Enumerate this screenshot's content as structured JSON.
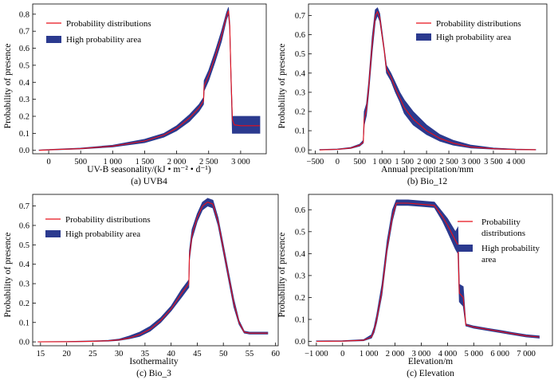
{
  "colors": {
    "line": "#e8101a",
    "band": "#2b3a8f",
    "frame": "#000000"
  },
  "legend": {
    "line_label": "Probability distributions",
    "band_label": "High probability area"
  },
  "panels": [
    {
      "caption": "(a)  UVB4",
      "xlabel": "UV-B seasonality/(kJ • m⁻² • d⁻¹)",
      "ylabel": "Probability of presence",
      "xlim": [
        -250,
        3400
      ],
      "ylim": [
        -0.02,
        0.86
      ],
      "xticks": [
        0,
        500,
        1000,
        1500,
        2000,
        2500,
        3000
      ],
      "xtick_labels": [
        "0",
        "500",
        "1 000",
        "1 500",
        "2 000",
        "2 500",
        "3 000"
      ],
      "yticks": [
        0,
        0.1,
        0.2,
        0.3,
        0.4,
        0.5,
        0.6,
        0.7,
        0.8
      ],
      "ytick_labels": [
        "0.0",
        "0.1",
        "0.2",
        "0.3",
        "0.4",
        "0.5",
        "0.6",
        "0.7",
        "0.8"
      ]
    },
    {
      "caption": "(b)  Bio_12",
      "xlabel": "Annual precipitation/mm",
      "ylabel": "Probability of presence",
      "xlim": [
        -650,
        4700
      ],
      "ylim": [
        -0.02,
        0.76
      ],
      "xticks": [
        -500,
        0,
        500,
        1000,
        1500,
        2000,
        2500,
        3000,
        3500,
        4000
      ],
      "xtick_labels": [
        "−500",
        "0",
        "500",
        "1 000",
        "1 500",
        "2 000",
        "2 500",
        "3 000",
        "3 500",
        "4 000"
      ],
      "yticks": [
        0,
        0.1,
        0.2,
        0.3,
        0.4,
        0.5,
        0.6,
        0.7
      ],
      "ytick_labels": [
        "0.0",
        "0.1",
        "0.2",
        "0.3",
        "0.4",
        "0.5",
        "0.6",
        "0.7"
      ]
    },
    {
      "caption": "(c)  Bio_3",
      "xlabel": "Isothermality",
      "ylabel": "Probability of presence",
      "xlim": [
        13.5,
        60.5
      ],
      "ylim": [
        -0.02,
        0.76
      ],
      "xticks": [
        15,
        20,
        25,
        30,
        35,
        40,
        45,
        50,
        55,
        60
      ],
      "xtick_labels": [
        "15",
        "20",
        "25",
        "30",
        "35",
        "40",
        "45",
        "50",
        "55",
        "60"
      ],
      "yticks": [
        0,
        0.1,
        0.2,
        0.3,
        0.4,
        0.5,
        0.6,
        0.7
      ],
      "ytick_labels": [
        "0.0",
        "0.1",
        "0.2",
        "0.3",
        "0.4",
        "0.5",
        "0.6",
        "0.7"
      ]
    },
    {
      "caption": "(c)  Elevation",
      "xlabel": "Elevation/m",
      "ylabel": "Probability of presence",
      "xlim": [
        -1300,
        8000
      ],
      "ylim": [
        -0.02,
        0.67
      ],
      "xticks": [
        -1000,
        0,
        1000,
        2000,
        3000,
        4000,
        5000,
        6000,
        7000
      ],
      "xtick_labels": [
        "−1 000",
        "0",
        "1 000",
        "2 000",
        "3 000",
        "4 000",
        "5 000",
        "6 000",
        "7 000"
      ],
      "yticks": [
        0,
        0.1,
        0.2,
        0.3,
        0.4,
        0.5,
        0.6
      ],
      "ytick_labels": [
        "0.0",
        "0.1",
        "0.2",
        "0.3",
        "0.4",
        "0.5",
        "0.6"
      ]
    }
  ],
  "chart_data": [
    {
      "type": "area",
      "title": "(a) UVB4",
      "xlabel": "UV-B seasonality/(kJ • m⁻² • d⁻¹)",
      "ylabel": "Probability of presence",
      "xlim": [
        -250,
        3400
      ],
      "ylim": [
        -0.02,
        0.86
      ],
      "series": [
        {
          "name": "Probability distributions",
          "x": [
            -150,
            0,
            500,
            1000,
            1500,
            1800,
            2000,
            2200,
            2350,
            2420,
            2430,
            2500,
            2600,
            2700,
            2780,
            2810,
            2830,
            2850,
            2870,
            2900,
            3000,
            3100,
            3300
          ],
          "y": [
            0,
            0.003,
            0.01,
            0.025,
            0.055,
            0.09,
            0.13,
            0.19,
            0.25,
            0.29,
            0.38,
            0.44,
            0.55,
            0.67,
            0.79,
            0.82,
            0.73,
            0.43,
            0.18,
            0.15,
            0.145,
            0.145,
            0.145
          ]
        },
        {
          "name": "High probability area",
          "x": [
            -150,
            0,
            500,
            1000,
            1500,
            1800,
            2000,
            2200,
            2350,
            2420,
            2430,
            2500,
            2600,
            2700,
            2780,
            2810,
            2830,
            2850,
            2870,
            2900,
            3000,
            3100,
            3300
          ],
          "lower": [
            0,
            0.002,
            0.008,
            0.02,
            0.045,
            0.078,
            0.115,
            0.17,
            0.23,
            0.27,
            0.35,
            0.41,
            0.52,
            0.64,
            0.77,
            0.8,
            0.71,
            0.4,
            0.1,
            0.1,
            0.1,
            0.1,
            0.1
          ],
          "upper": [
            0.002,
            0.005,
            0.013,
            0.03,
            0.065,
            0.1,
            0.145,
            0.21,
            0.27,
            0.31,
            0.41,
            0.47,
            0.58,
            0.7,
            0.81,
            0.84,
            0.75,
            0.46,
            0.2,
            0.2,
            0.2,
            0.2,
            0.2
          ]
        }
      ]
    },
    {
      "type": "area",
      "title": "(b) Bio_12",
      "xlabel": "Annual precipitation/mm",
      "ylabel": "Probability of presence",
      "xlim": [
        -650,
        4700
      ],
      "ylim": [
        -0.02,
        0.76
      ],
      "series": [
        {
          "name": "Probability distributions",
          "x": [
            -400,
            0,
            300,
            500,
            580,
            600,
            650,
            700,
            780,
            850,
            900,
            950,
            1000,
            1050,
            1100,
            1200,
            1300,
            1400,
            1500,
            1700,
            2000,
            2300,
            2600,
            3000,
            3500,
            4000,
            4450
          ],
          "y": [
            0,
            0.003,
            0.01,
            0.025,
            0.04,
            0.16,
            0.21,
            0.32,
            0.55,
            0.7,
            0.72,
            0.69,
            0.6,
            0.52,
            0.42,
            0.38,
            0.32,
            0.27,
            0.22,
            0.16,
            0.1,
            0.06,
            0.035,
            0.015,
            0.006,
            0.002,
            0.001
          ]
        },
        {
          "name": "High probability area",
          "x": [
            -400,
            0,
            300,
            500,
            580,
            600,
            650,
            700,
            780,
            850,
            900,
            950,
            1000,
            1050,
            1100,
            1200,
            1300,
            1400,
            1500,
            1700,
            2000,
            2300,
            2600,
            3000,
            3500,
            4000,
            4450
          ],
          "lower": [
            0,
            0.002,
            0.008,
            0.02,
            0.035,
            0.13,
            0.18,
            0.29,
            0.51,
            0.67,
            0.7,
            0.67,
            0.59,
            0.51,
            0.4,
            0.36,
            0.3,
            0.25,
            0.19,
            0.13,
            0.08,
            0.045,
            0.025,
            0.01,
            0.004,
            0.001,
            0
          ],
          "upper": [
            0.002,
            0.005,
            0.013,
            0.03,
            0.05,
            0.2,
            0.24,
            0.35,
            0.59,
            0.73,
            0.74,
            0.71,
            0.62,
            0.53,
            0.44,
            0.4,
            0.35,
            0.3,
            0.26,
            0.2,
            0.13,
            0.08,
            0.05,
            0.025,
            0.01,
            0.004,
            0.002
          ]
        }
      ]
    },
    {
      "type": "area",
      "title": "(c) Bio_3",
      "xlabel": "Isothermality",
      "ylabel": "Probability of presence",
      "xlim": [
        13.5,
        60.5
      ],
      "ylim": [
        -0.02,
        0.76
      ],
      "series": [
        {
          "name": "Probability distributions",
          "x": [
            14.5,
            20,
            25,
            28,
            30,
            32,
            34,
            36,
            38,
            40,
            42,
            43.4,
            43.5,
            44,
            45,
            46,
            47,
            48,
            49,
            50,
            51,
            52,
            53,
            54,
            55,
            58.5
          ],
          "y": [
            0,
            0.001,
            0.003,
            0.006,
            0.01,
            0.02,
            0.038,
            0.065,
            0.11,
            0.17,
            0.25,
            0.3,
            0.44,
            0.55,
            0.64,
            0.7,
            0.72,
            0.71,
            0.62,
            0.48,
            0.34,
            0.2,
            0.1,
            0.05,
            0.045,
            0.045
          ]
        },
        {
          "name": "High probability area",
          "x": [
            14.5,
            20,
            25,
            28,
            30,
            32,
            34,
            36,
            38,
            40,
            42,
            43.4,
            43.5,
            44,
            45,
            46,
            47,
            48,
            49,
            50,
            51,
            52,
            53,
            54,
            55,
            58.5
          ],
          "lower": [
            0,
            0,
            0.002,
            0.004,
            0.007,
            0.016,
            0.028,
            0.055,
            0.1,
            0.16,
            0.23,
            0.28,
            0.42,
            0.53,
            0.62,
            0.68,
            0.7,
            0.69,
            0.6,
            0.46,
            0.32,
            0.18,
            0.09,
            0.045,
            0.04,
            0.04
          ],
          "upper": [
            0.001,
            0.002,
            0.005,
            0.008,
            0.014,
            0.03,
            0.05,
            0.08,
            0.125,
            0.185,
            0.27,
            0.32,
            0.47,
            0.58,
            0.66,
            0.72,
            0.74,
            0.73,
            0.64,
            0.5,
            0.36,
            0.22,
            0.11,
            0.055,
            0.05,
            0.05
          ]
        }
      ]
    },
    {
      "type": "area",
      "title": "(c) Elevation",
      "xlabel": "Elevation/m",
      "ylabel": "Probability of presence",
      "xlim": [
        -1300,
        8000
      ],
      "ylim": [
        -0.02,
        0.67
      ],
      "series": [
        {
          "name": "Probability distributions",
          "x": [
            -1000,
            0,
            800,
            1100,
            1200,
            1300,
            1500,
            1700,
            1900,
            2050,
            2500,
            3000,
            3500,
            3800,
            4000,
            4300,
            4400,
            4450,
            4600,
            4700,
            5000,
            5500,
            6000,
            6500,
            7000,
            7500
          ],
          "y": [
            0,
            0.001,
            0.005,
            0.02,
            0.05,
            0.1,
            0.23,
            0.43,
            0.57,
            0.63,
            0.63,
            0.625,
            0.62,
            0.57,
            0.53,
            0.46,
            0.44,
            0.22,
            0.2,
            0.075,
            0.065,
            0.055,
            0.045,
            0.035,
            0.025,
            0.02
          ]
        },
        {
          "name": "High probability area",
          "x": [
            -1000,
            0,
            800,
            1100,
            1200,
            1300,
            1500,
            1700,
            1900,
            2050,
            2500,
            3000,
            3500,
            3800,
            4000,
            4300,
            4400,
            4450,
            4600,
            4700,
            5000,
            5500,
            6000,
            6500,
            7000,
            7500
          ],
          "lower": [
            0,
            0,
            0.003,
            0.015,
            0.04,
            0.085,
            0.21,
            0.41,
            0.55,
            0.62,
            0.62,
            0.615,
            0.61,
            0.55,
            0.5,
            0.42,
            0.4,
            0.18,
            0.16,
            0.07,
            0.06,
            0.05,
            0.04,
            0.03,
            0.02,
            0.015
          ],
          "upper": [
            0.002,
            0.003,
            0.008,
            0.03,
            0.065,
            0.12,
            0.26,
            0.46,
            0.6,
            0.645,
            0.645,
            0.64,
            0.635,
            0.59,
            0.56,
            0.5,
            0.52,
            0.26,
            0.25,
            0.08,
            0.07,
            0.06,
            0.05,
            0.04,
            0.03,
            0.025
          ]
        }
      ]
    }
  ]
}
